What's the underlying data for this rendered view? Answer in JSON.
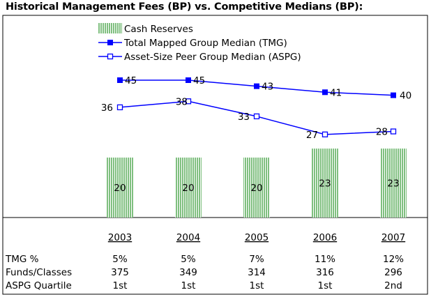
{
  "chart_data": {
    "type": "bar",
    "title": "Historical Management Fees (BP) vs. Competitive Medians (BP):",
    "categories": [
      "2003",
      "2004",
      "2005",
      "2006",
      "2007"
    ],
    "ylim": [
      0,
      50
    ],
    "legend_position": "top-left",
    "grid": false,
    "series": [
      {
        "name": "Cash Reserves",
        "kind": "bar",
        "color": "#8bc58b",
        "values": [
          20,
          20,
          20,
          23,
          23
        ]
      },
      {
        "name": "Total Mapped Group Median (TMG)",
        "kind": "line",
        "marker": "filled-square",
        "color": "#0000ff",
        "values": [
          45,
          45,
          43,
          41,
          40
        ]
      },
      {
        "name": "Asset-Size Peer Group Median (ASPG)",
        "kind": "line",
        "marker": "hollow-square",
        "color": "#0000ff",
        "values": [
          36,
          38,
          33,
          27,
          28
        ]
      }
    ],
    "table": {
      "rows": [
        {
          "label": "TMG %",
          "values": [
            "5%",
            "5%",
            "7%",
            "11%",
            "12%"
          ]
        },
        {
          "label": "Funds/Classes",
          "values": [
            "375",
            "349",
            "314",
            "316",
            "296"
          ]
        },
        {
          "label": "ASPG Quartile",
          "values": [
            "1st",
            "1st",
            "1st",
            "1st",
            "2nd"
          ]
        }
      ]
    }
  }
}
